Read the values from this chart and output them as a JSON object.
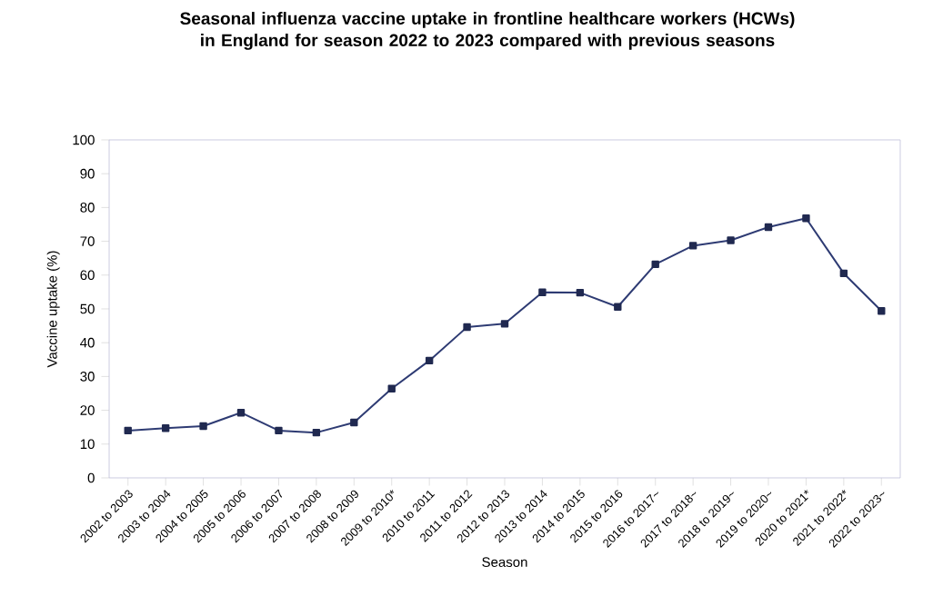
{
  "chart_data": {
    "type": "line",
    "title": "Seasonal influenza vaccine uptake in frontline healthcare workers (HCWs) in England for season 2022 to 2023 compared with previous seasons",
    "xlabel": "Season",
    "ylabel": "Vaccine uptake (%)",
    "categories": [
      "2002 to 2003",
      "2003 to 2004",
      "2004 to 2005",
      "2005 to 2006",
      "2006 to 2007",
      "2007 to 2008",
      "2008 to 2009",
      "2009 to 2010*",
      "2010 to 2011",
      "2011 to 2012",
      "2012 to 2013",
      "2013 to 2014",
      "2014 to 2015",
      "2015 to 2016",
      "2016 to 2017~",
      "2017 to 2018~",
      "2018 to 2019~",
      "2019 to 2020~",
      "2020 to 2021*",
      "2021 to 2022*",
      "2022 to 2023~"
    ],
    "values": [
      14,
      14.7,
      15.3,
      19.3,
      14,
      13.4,
      16.4,
      26.4,
      34.7,
      44.6,
      45.6,
      54.9,
      54.8,
      50.6,
      63.2,
      68.7,
      70.3,
      74.2,
      76.8,
      60.5,
      49.4
    ],
    "color": "#2e3b73",
    "marker": "square",
    "line_style": "solid",
    "ylim": [
      0,
      100
    ],
    "yticks": [
      0,
      10,
      20,
      30,
      40,
      50,
      60,
      70,
      80,
      90,
      100
    ]
  }
}
